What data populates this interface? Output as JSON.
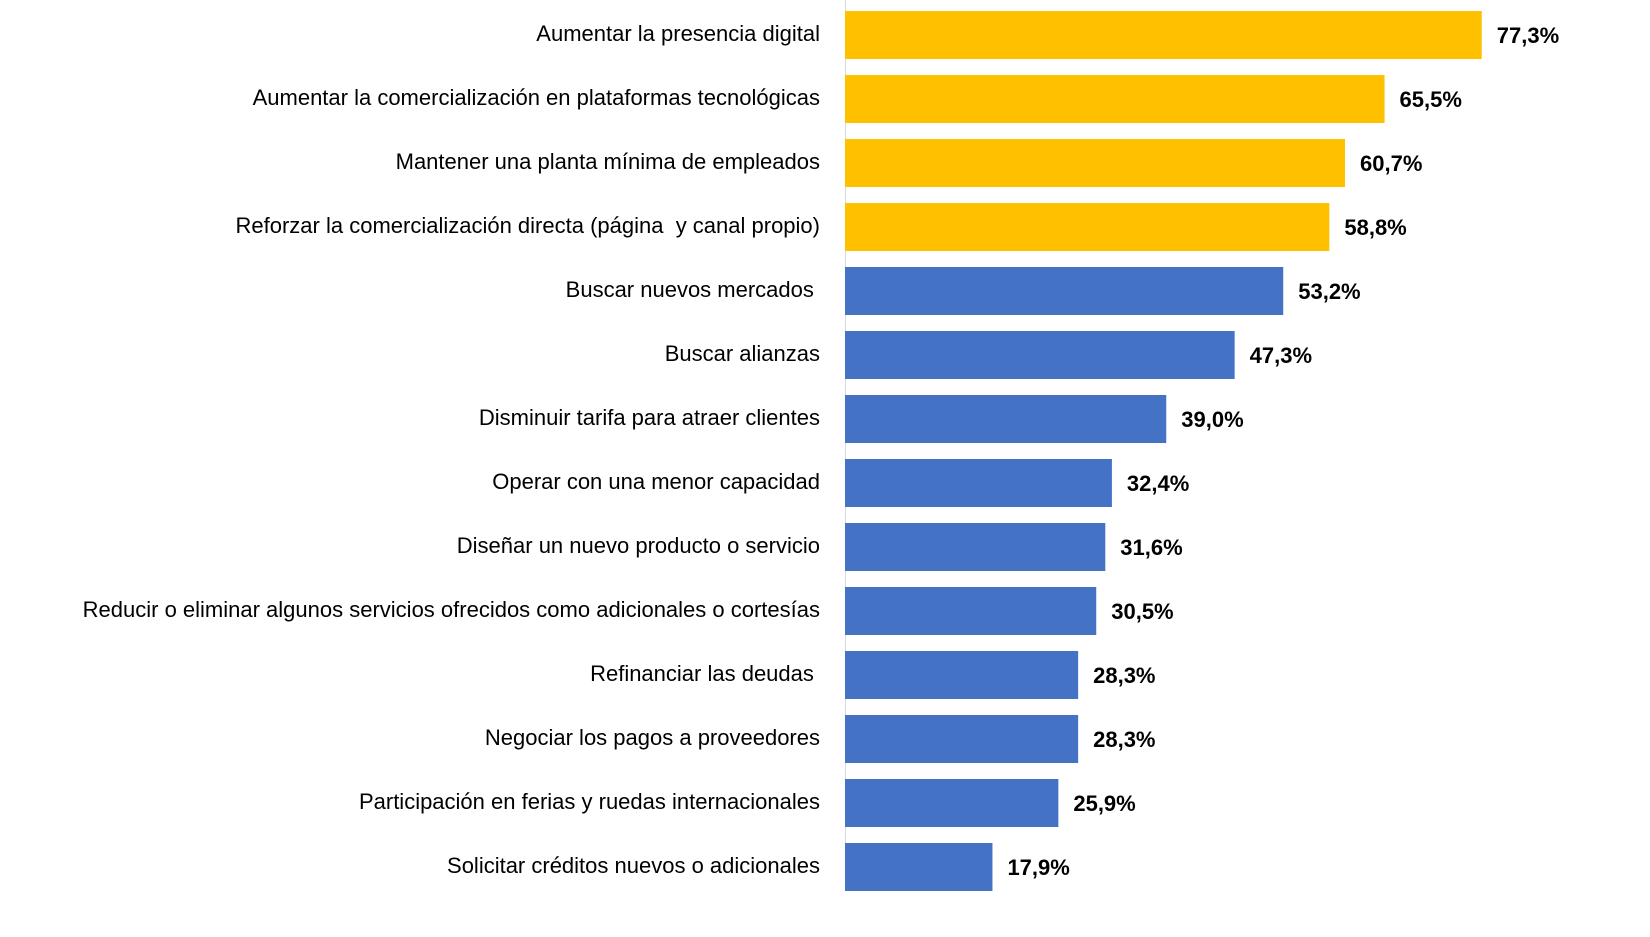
{
  "chart_data": {
    "type": "hbar",
    "categories": [
      "Aumentar la presencia digital",
      "Aumentar la comercialización en plataformas tecnológicas",
      "Mantener una planta mínima de empleados",
      "Reforzar la comercialización directa (página  y canal propio)",
      "Buscar nuevos mercados ",
      "Buscar alianzas",
      "Disminuir tarifa para atraer clientes",
      "Operar con una menor capacidad",
      "Diseñar un nuevo producto o servicio",
      "Reducir o eliminar algunos servicios ofrecidos como adicionales o cortesías",
      "Refinanciar las deudas ",
      "Negociar los pagos a proveedores",
      "Participación en ferias y ruedas internacionales",
      "Solicitar créditos nuevos o adicionales"
    ],
    "values": [
      77.3,
      65.5,
      60.7,
      58.8,
      53.2,
      47.3,
      39.0,
      32.4,
      31.6,
      30.5,
      28.3,
      28.3,
      25.9,
      17.9
    ],
    "value_labels": [
      "77,3%",
      "65,5%",
      "60,7%",
      "58,8%",
      "53,2%",
      "47,3%",
      "39,0%",
      "32,4%",
      "31,6%",
      "30,5%",
      "28,3%",
      "28,3%",
      "25,9%",
      "17,9%"
    ],
    "colors": [
      "#ffc000",
      "#ffc000",
      "#ffc000",
      "#ffc000",
      "#4472c4",
      "#4472c4",
      "#4472c4",
      "#4472c4",
      "#4472c4",
      "#4472c4",
      "#4472c4",
      "#4472c4",
      "#4472c4",
      "#4472c4"
    ],
    "xlim": [
      0,
      80
    ]
  }
}
